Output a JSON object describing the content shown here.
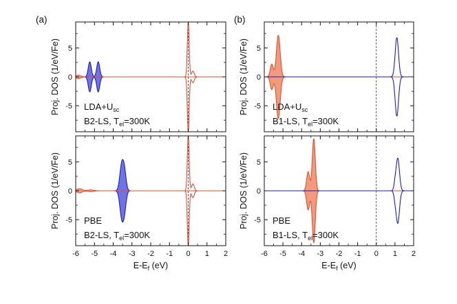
{
  "figure": {
    "label_a": "(a)",
    "label_b": "(b)",
    "ylabel": "Proj. DOS (1/eV/Fe)",
    "xlabel_main": "E-E",
    "xlabel_sub": "f",
    "xlabel_unit": " (eV)"
  },
  "colors": {
    "blue_fill": "#6f73e6",
    "blue_line": "#1a1ad0",
    "red_fill": "#f39a7c",
    "red_line": "#e0502e",
    "axis": "#111111",
    "fermi_dash": "#333333"
  },
  "chart_data": [
    {
      "type": "area",
      "id": "a-top",
      "column": "a",
      "title": "",
      "annotation_method": "LDA+U",
      "annotation_method_sub": "sc",
      "annotation_state": "B2-LS, T",
      "annotation_state_sub": "el",
      "annotation_state_tail": "=300K",
      "xlabel": "",
      "ylabel": "Proj. DOS (1/eV/Fe)",
      "xlim": [
        -6,
        2
      ],
      "ylim": [
        -9.5,
        9.5
      ],
      "xticks": [
        -6,
        -5,
        -4,
        -3,
        -2,
        -1,
        0,
        1,
        2
      ],
      "yticks": [
        -5,
        0,
        5
      ],
      "show_xticklabels": false,
      "fermi_line_x": 0,
      "grid": false,
      "series": [
        {
          "color": "blue",
          "filled": true,
          "peaks": [
            {
              "x": -5.25,
              "h": 2.6,
              "w": 0.08
            },
            {
              "x": -4.8,
              "h": 2.6,
              "w": 0.08
            }
          ]
        },
        {
          "color": "red",
          "filled": false,
          "peaks": [
            {
              "x": 0.0,
              "h": 9.5,
              "w": 0.05
            },
            {
              "x": 0.25,
              "h": 1.0,
              "w": 0.07
            }
          ]
        },
        {
          "color": "red",
          "filled": true,
          "peaks": [
            {
              "x": -5.85,
              "h": 0.3,
              "w": 0.12
            }
          ]
        }
      ]
    },
    {
      "type": "area",
      "id": "a-bottom",
      "column": "a",
      "title": "",
      "annotation_method": "PBE",
      "annotation_method_sub": "",
      "annotation_state": "B2-LS, T",
      "annotation_state_sub": "el",
      "annotation_state_tail": "=300K",
      "xlabel": "E-Ef (eV)",
      "ylabel": "Proj. DOS (1/eV/Fe)",
      "xlim": [
        -6,
        2
      ],
      "ylim": [
        -9.5,
        9.5
      ],
      "xticks": [
        -6,
        -5,
        -4,
        -3,
        -2,
        -1,
        0,
        1,
        2
      ],
      "yticks": [
        -5,
        0,
        5
      ],
      "show_xticklabels": true,
      "fermi_line_x": 0,
      "grid": false,
      "series": [
        {
          "color": "blue",
          "filled": true,
          "peaks": [
            {
              "x": -3.55,
              "h": 4.3,
              "w": 0.1
            },
            {
              "x": -3.4,
              "h": 3.0,
              "w": 0.09
            }
          ]
        },
        {
          "color": "red",
          "filled": false,
          "peaks": [
            {
              "x": 0.0,
              "h": 9.5,
              "w": 0.05
            },
            {
              "x": 0.25,
              "h": 1.2,
              "w": 0.07
            }
          ]
        },
        {
          "color": "red",
          "filled": true,
          "peaks": [
            {
              "x": -5.8,
              "h": 0.35,
              "w": 0.15
            },
            {
              "x": -5.2,
              "h": 0.15,
              "w": 0.15
            }
          ]
        }
      ]
    },
    {
      "type": "area",
      "id": "b-top",
      "column": "b",
      "title": "",
      "annotation_method": "LDA+U",
      "annotation_method_sub": "sc",
      "annotation_state": "B1-LS, T",
      "annotation_state_sub": "el",
      "annotation_state_tail": "=300K",
      "xlabel": "",
      "ylabel": "Proj. DOS (1/eV/Fe)",
      "xlim": [
        -6,
        2
      ],
      "ylim": [
        -9.5,
        9.5
      ],
      "xticks": [
        -6,
        -5,
        -4,
        -3,
        -2,
        -1,
        0,
        1,
        2
      ],
      "yticks": [
        -5,
        0,
        5
      ],
      "show_xticklabels": false,
      "fermi_line_x": 0,
      "grid": false,
      "series": [
        {
          "color": "red",
          "filled": true,
          "peaks": [
            {
              "x": -5.25,
              "h": 7.2,
              "w": 0.1
            },
            {
              "x": -5.6,
              "h": 2.2,
              "w": 0.08
            }
          ]
        },
        {
          "color": "blue",
          "filled": false,
          "peaks": [
            {
              "x": 1.1,
              "h": 6.8,
              "w": 0.09
            }
          ]
        }
      ]
    },
    {
      "type": "area",
      "id": "b-bottom",
      "column": "b",
      "title": "",
      "annotation_method": "PBE",
      "annotation_method_sub": "",
      "annotation_state": "B1-LS, T",
      "annotation_state_sub": "el",
      "annotation_state_tail": "=300K",
      "xlabel": "E-Ef (eV)",
      "ylabel": "Proj. DOS (1/eV/Fe)",
      "xlim": [
        -6,
        2
      ],
      "ylim": [
        -9.5,
        9.5
      ],
      "xticks": [
        -6,
        -5,
        -4,
        -3,
        -2,
        -1,
        0,
        1,
        2
      ],
      "yticks": [
        -5,
        0,
        5
      ],
      "show_xticklabels": true,
      "fermi_line_x": 0,
      "grid": false,
      "series": [
        {
          "color": "red",
          "filled": true,
          "peaks": [
            {
              "x": -3.35,
              "h": 9.0,
              "w": 0.08
            },
            {
              "x": -3.65,
              "h": 3.3,
              "w": 0.08
            }
          ]
        },
        {
          "color": "blue",
          "filled": false,
          "peaks": [
            {
              "x": 1.15,
              "h": 5.6,
              "w": 0.09
            },
            {
              "x": 1.0,
              "h": 1.0,
              "w": 0.06
            }
          ]
        }
      ]
    }
  ]
}
